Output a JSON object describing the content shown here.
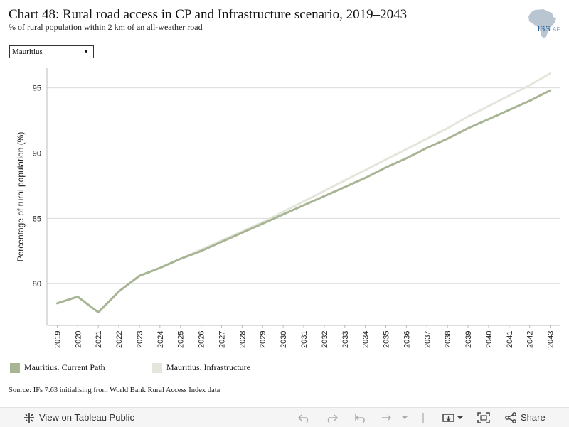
{
  "header": {
    "title": "Chart 48: Rural road access in CP and Infrastructure scenario, 2019–2043",
    "subtitle": "% of rural population within 2 km of an all-weather road",
    "logo_text": "ISS",
    "logo_text_2": "AFI"
  },
  "filter": {
    "selected": "Mauritius"
  },
  "colors": {
    "current_path": "#a8b594",
    "infrastructure": "#e4e6dc",
    "grid": "#dcdcdc"
  },
  "chart_data": {
    "type": "line",
    "title": "Chart 48: Rural road access in CP and Infrastructure scenario, 2019–2043",
    "xlabel": "",
    "ylabel": "Percentage of rural population (%)",
    "x": [
      2019,
      2020,
      2021,
      2022,
      2023,
      2024,
      2025,
      2026,
      2027,
      2028,
      2029,
      2030,
      2031,
      2032,
      2033,
      2034,
      2035,
      2036,
      2037,
      2038,
      2039,
      2040,
      2041,
      2042,
      2043
    ],
    "yticks": [
      80,
      85,
      90,
      95
    ],
    "ylim": [
      76.8,
      96.5
    ],
    "grid": true,
    "legend_position": "bottom-left",
    "series": [
      {
        "name": "Mauritius. Current Path",
        "color": "#a8b594",
        "values": [
          78.5,
          79.0,
          77.8,
          79.4,
          80.6,
          81.2,
          81.9,
          82.5,
          83.2,
          83.9,
          84.6,
          85.3,
          86.0,
          86.7,
          87.4,
          88.1,
          88.9,
          89.6,
          90.4,
          91.1,
          91.9,
          92.6,
          93.3,
          94.0,
          94.8
        ]
      },
      {
        "name": "Mauritius. Infrastructure",
        "color": "#e4e6dc",
        "values": [
          78.5,
          79.0,
          77.8,
          79.4,
          80.6,
          81.2,
          81.9,
          82.6,
          83.3,
          84.0,
          84.7,
          85.5,
          86.3,
          87.1,
          87.9,
          88.7,
          89.5,
          90.3,
          91.1,
          91.9,
          92.8,
          93.6,
          94.4,
          95.2,
          96.1
        ]
      }
    ]
  },
  "source": "Source: IFs 7.63 initialising from World Bank Rural Access Index data",
  "toolbar": {
    "view_label": "View on Tableau Public",
    "share_label": "Share"
  }
}
